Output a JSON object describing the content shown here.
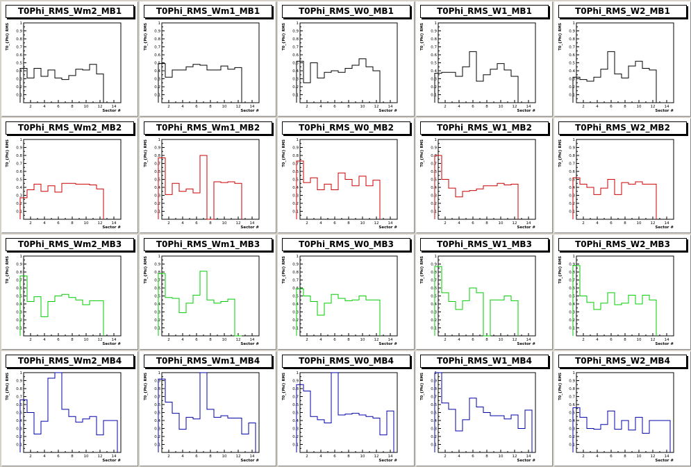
{
  "chart_data": [
    {
      "type": "line",
      "title": "T0Phi_RMS_Wm2_MB1",
      "xlabel": "Sector #",
      "ylabel": "T0_{Phi} RMS",
      "color": "#000000",
      "xlim": [
        1,
        15
      ],
      "ylim": [
        0,
        1
      ],
      "x": [
        1,
        2,
        3,
        4,
        5,
        6,
        7,
        8,
        9,
        10,
        11,
        12
      ],
      "y": [
        0.43,
        0.31,
        0.43,
        0.33,
        0.41,
        0.31,
        0.29,
        0.34,
        0.42,
        0.41,
        0.48,
        0.36
      ]
    },
    {
      "type": "line",
      "title": "T0Phi_RMS_Wm1_MB1",
      "xlabel": "Sector #",
      "ylabel": "T0_{Phi} RMS",
      "color": "#000000",
      "xlim": [
        1,
        15
      ],
      "ylim": [
        0,
        1
      ],
      "x": [
        1,
        2,
        3,
        4,
        5,
        6,
        7,
        8,
        9,
        10,
        11,
        12
      ],
      "y": [
        0.49,
        0.32,
        0.41,
        0.41,
        0.45,
        0.48,
        0.47,
        0.41,
        0.41,
        0.46,
        0.42,
        0.44
      ]
    },
    {
      "type": "line",
      "title": "T0Phi_RMS_W0_MB1",
      "xlabel": "Sector #",
      "ylabel": "T0_{Phi} RMS",
      "color": "#000000",
      "xlim": [
        1,
        15
      ],
      "ylim": [
        0,
        1
      ],
      "x": [
        1,
        2,
        3,
        4,
        5,
        6,
        7,
        8,
        9,
        10,
        11,
        12
      ],
      "y": [
        0.52,
        0.25,
        0.5,
        0.31,
        0.38,
        0.4,
        0.38,
        0.43,
        0.47,
        0.55,
        0.45,
        0.4
      ]
    },
    {
      "type": "line",
      "title": "T0Phi_RMS_W1_MB1",
      "xlabel": "Sector #",
      "ylabel": "T0_{Phi} RMS",
      "color": "#000000",
      "xlim": [
        1,
        15
      ],
      "ylim": [
        0,
        1
      ],
      "x": [
        1,
        2,
        3,
        4,
        5,
        6,
        7,
        8,
        9,
        10,
        11,
        12
      ],
      "y": [
        0.37,
        0.38,
        0.38,
        0.33,
        0.45,
        0.64,
        0.27,
        0.35,
        0.42,
        0.49,
        0.41,
        0.33
      ]
    },
    {
      "type": "line",
      "title": "T0Phi_RMS_W2_MB1",
      "xlabel": "Sector #",
      "ylabel": "T0_{Phi} RMS",
      "color": "#000000",
      "xlim": [
        1,
        15
      ],
      "ylim": [
        0,
        1
      ],
      "x": [
        1,
        2,
        3,
        4,
        5,
        6,
        7,
        8,
        9,
        10,
        11,
        12
      ],
      "y": [
        0.32,
        0.29,
        0.27,
        0.32,
        0.42,
        0.64,
        0.36,
        0.31,
        0.46,
        0.52,
        0.43,
        0.41
      ]
    },
    {
      "type": "line",
      "title": "T0Phi_RMS_Wm2_MB2",
      "xlabel": "Sector #",
      "ylabel": "T0_{Phi} RMS",
      "color": "#cc0000",
      "xlim": [
        1,
        15
      ],
      "ylim": [
        0,
        1
      ],
      "x": [
        1,
        2,
        3,
        4,
        5,
        6,
        7,
        8,
        9,
        10,
        11,
        12
      ],
      "y": [
        0.27,
        0.37,
        0.44,
        0.35,
        0.42,
        0.34,
        0.45,
        0.45,
        0.44,
        0.44,
        0.43,
        0.38
      ]
    },
    {
      "type": "line",
      "title": "T0Phi_RMS_Wm1_MB2",
      "xlabel": "Sector #",
      "ylabel": "T0_{Phi} RMS",
      "color": "#cc0000",
      "xlim": [
        1,
        15
      ],
      "ylim": [
        0,
        1
      ],
      "x": [
        1,
        2,
        3,
        4,
        5,
        6,
        7,
        8,
        9,
        10,
        11,
        12
      ],
      "y": [
        0.77,
        0.31,
        0.45,
        0.35,
        0.38,
        0.33,
        0.8,
        0,
        0.47,
        0.46,
        0.47,
        0.45
      ]
    },
    {
      "type": "line",
      "title": "T0Phi_RMS_W0_MB2",
      "xlabel": "Sector #",
      "ylabel": "T0_{Phi} RMS",
      "color": "#cc0000",
      "xlim": [
        1,
        15
      ],
      "ylim": [
        0,
        1
      ],
      "x": [
        1,
        2,
        3,
        4,
        5,
        6,
        7,
        8,
        9,
        10,
        11,
        12
      ],
      "y": [
        0.73,
        0.46,
        0.52,
        0.37,
        0.44,
        0.37,
        0.58,
        0.5,
        0.42,
        0.54,
        0.42,
        0.49
      ]
    },
    {
      "type": "line",
      "title": "T0Phi_RMS_W1_MB2",
      "xlabel": "Sector #",
      "ylabel": "T0_{Phi} RMS",
      "color": "#cc0000",
      "xlim": [
        1,
        15
      ],
      "ylim": [
        0,
        1
      ],
      "x": [
        1,
        2,
        3,
        4,
        5,
        6,
        7,
        8,
        9,
        10,
        11,
        12
      ],
      "y": [
        0.8,
        0.5,
        0.39,
        0.28,
        0.35,
        0.36,
        0.38,
        0.42,
        0.42,
        0.45,
        0.43,
        0.44
      ]
    },
    {
      "type": "line",
      "title": "T0Phi_RMS_W2_MB2",
      "xlabel": "Sector #",
      "ylabel": "T0_{Phi} RMS",
      "color": "#cc0000",
      "xlim": [
        1,
        15
      ],
      "ylim": [
        0,
        1
      ],
      "x": [
        1,
        2,
        3,
        4,
        5,
        6,
        7,
        8,
        9,
        10,
        11,
        12
      ],
      "y": [
        0.52,
        0.44,
        0.4,
        0.31,
        0.39,
        0.5,
        0.31,
        0.46,
        0.44,
        0.47,
        0.44,
        0.44
      ]
    },
    {
      "type": "line",
      "title": "T0Phi_RMS_Wm2_MB3",
      "xlabel": "Sector #",
      "ylabel": "T0_{Phi} RMS",
      "color": "#00cc00",
      "xlim": [
        1,
        15
      ],
      "ylim": [
        0,
        1
      ],
      "x": [
        1,
        2,
        3,
        4,
        5,
        6,
        7,
        8,
        9,
        10,
        11,
        12
      ],
      "y": [
        0.75,
        0.43,
        0.49,
        0.24,
        0.43,
        0.5,
        0.52,
        0.48,
        0.45,
        0.39,
        0.44,
        0.44
      ]
    },
    {
      "type": "line",
      "title": "T0Phi_RMS_Wm1_MB3",
      "xlabel": "Sector #",
      "ylabel": "T0_{Phi} RMS",
      "color": "#00cc00",
      "xlim": [
        1,
        15
      ],
      "ylim": [
        0,
        1
      ],
      "x": [
        1,
        2,
        3,
        4,
        5,
        6,
        7,
        8,
        9,
        10,
        11,
        12
      ],
      "y": [
        0.78,
        0.48,
        0.47,
        0.29,
        0.41,
        0.51,
        0.81,
        0.45,
        0.41,
        0.43,
        0.46,
        0
      ]
    },
    {
      "type": "line",
      "title": "T0Phi_RMS_W0_MB3",
      "xlabel": "Sector #",
      "ylabel": "T0_{Phi} RMS",
      "color": "#00cc00",
      "xlim": [
        1,
        15
      ],
      "ylim": [
        0,
        1
      ],
      "x": [
        1,
        2,
        3,
        4,
        5,
        6,
        7,
        8,
        9,
        10,
        11,
        12
      ],
      "y": [
        0.59,
        0.5,
        0.43,
        0.26,
        0.41,
        0.52,
        0.47,
        0.44,
        0.45,
        0.5,
        0.45,
        0.45
      ]
    },
    {
      "type": "line",
      "title": "T0Phi_RMS_W1_MB3",
      "xlabel": "Sector #",
      "ylabel": "T0_{Phi} RMS",
      "color": "#00cc00",
      "xlim": [
        1,
        15
      ],
      "ylim": [
        0,
        1
      ],
      "x": [
        1,
        2,
        3,
        4,
        5,
        6,
        7,
        8,
        9,
        10,
        11,
        12
      ],
      "y": [
        0.87,
        0.54,
        0.43,
        0.33,
        0.44,
        0.6,
        0.54,
        0,
        0.45,
        0.45,
        0.5,
        0.44
      ]
    },
    {
      "type": "line",
      "title": "T0Phi_RMS_W2_MB3",
      "xlabel": "Sector #",
      "ylabel": "T0_{Phi} RMS",
      "color": "#00cc00",
      "xlim": [
        1,
        15
      ],
      "ylim": [
        0,
        1
      ],
      "x": [
        1,
        2,
        3,
        4,
        5,
        6,
        7,
        8,
        9,
        10,
        11,
        12
      ],
      "y": [
        0.88,
        0.5,
        0.42,
        0.33,
        0.41,
        0.54,
        0.39,
        0.41,
        0.51,
        0.4,
        0.51,
        0.45
      ]
    },
    {
      "type": "line",
      "title": "T0Phi_RMS_Wm2_MB4",
      "xlabel": "Sector #",
      "ylabel": "T0_{Phi} RMS",
      "color": "#0000aa",
      "xlim": [
        1,
        15
      ],
      "ylim": [
        0,
        1
      ],
      "x": [
        1,
        2,
        3,
        4,
        5,
        6,
        7,
        8,
        9,
        10,
        11,
        12,
        13,
        14
      ],
      "y": [
        0.66,
        0.5,
        0.23,
        0.39,
        0.93,
        1,
        0.54,
        0.45,
        0.38,
        0.42,
        0.45,
        0.22,
        0.4,
        0.4
      ]
    },
    {
      "type": "line",
      "title": "T0Phi_RMS_Wm1_MB4",
      "xlabel": "Sector #",
      "ylabel": "T0_{Phi} RMS",
      "color": "#0000aa",
      "xlim": [
        1,
        15
      ],
      "ylim": [
        0,
        1
      ],
      "x": [
        1,
        2,
        3,
        4,
        5,
        6,
        7,
        8,
        9,
        10,
        11,
        12,
        13,
        14
      ],
      "y": [
        0.92,
        0.63,
        0.49,
        0.29,
        0.44,
        0.42,
        1,
        0.54,
        0.44,
        0.46,
        0.43,
        0.43,
        0.23,
        0.37
      ]
    },
    {
      "type": "line",
      "title": "T0Phi_RMS_W0_MB4",
      "xlabel": "Sector #",
      "ylabel": "T0_{Phi} RMS",
      "color": "#0000aa",
      "xlim": [
        1,
        15
      ],
      "ylim": [
        0,
        1
      ],
      "x": [
        1,
        2,
        3,
        4,
        5,
        6,
        7,
        8,
        9,
        10,
        11,
        12,
        13,
        14
      ],
      "y": [
        0.85,
        0.77,
        0.45,
        0.41,
        0.37,
        1,
        0.47,
        0.48,
        0.49,
        0.47,
        0.45,
        0.43,
        0.22,
        0.52
      ]
    },
    {
      "type": "line",
      "title": "T0Phi_RMS_W1_MB4",
      "xlabel": "Sector #",
      "ylabel": "T0_{Phi} RMS",
      "color": "#0000aa",
      "xlim": [
        1,
        15
      ],
      "ylim": [
        0,
        1
      ],
      "x": [
        1,
        2,
        3,
        4,
        5,
        6,
        7,
        8,
        9,
        10,
        11,
        12,
        13,
        14
      ],
      "y": [
        1,
        0.62,
        0.54,
        0.27,
        0.41,
        0.68,
        0.57,
        0.5,
        0.46,
        0.46,
        0.42,
        0.47,
        0.3,
        0.53
      ]
    },
    {
      "type": "line",
      "title": "T0Phi_RMS_W2_MB4",
      "xlabel": "Sector #",
      "ylabel": "T0_{Phi} RMS",
      "color": "#0000aa",
      "xlim": [
        1,
        15
      ],
      "ylim": [
        0,
        1
      ],
      "x": [
        1,
        2,
        3,
        4,
        5,
        6,
        7,
        8,
        9,
        10,
        11,
        12,
        13,
        14
      ],
      "y": [
        0.56,
        0.44,
        0.3,
        0.29,
        0.35,
        0.52,
        0.29,
        0.4,
        0.28,
        0.44,
        0.24,
        0.4,
        0.4,
        0.4
      ]
    }
  ],
  "axes": {
    "y_ticks": [
      "0.1",
      "0.2",
      "0.3",
      "0.4",
      "0.5",
      "0.6",
      "0.7",
      "0.8",
      "0.9",
      "1"
    ],
    "x_ticks": [
      "2",
      "4",
      "6",
      "8",
      "10",
      "12",
      "14"
    ]
  }
}
